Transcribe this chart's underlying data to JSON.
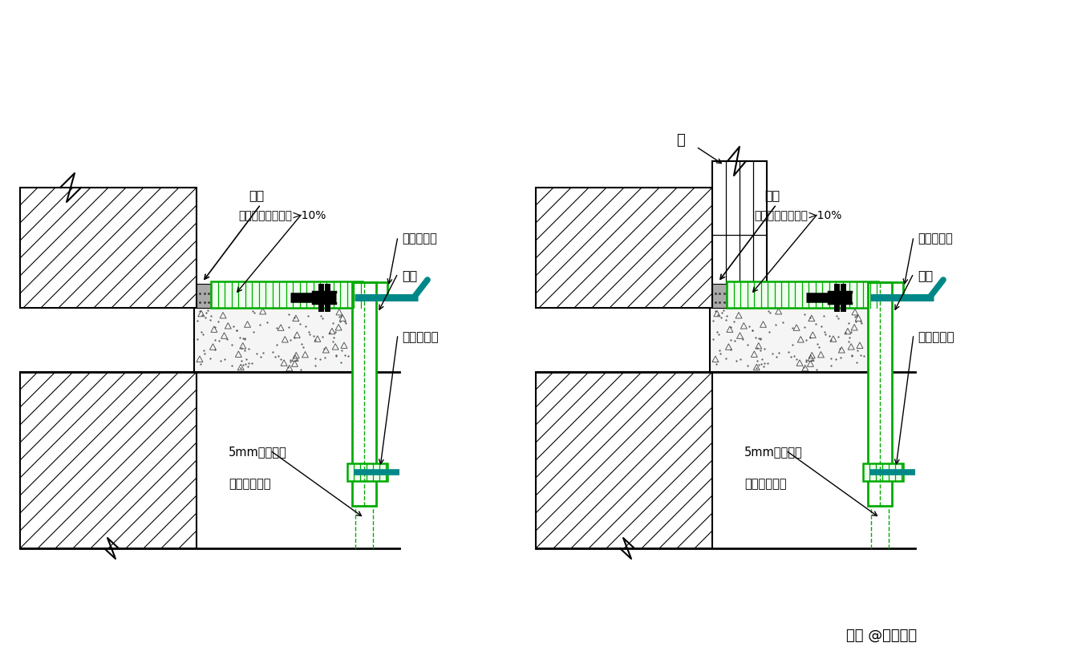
{
  "bg_color": "#ffffff",
  "black": "#000000",
  "green": "#00aa00",
  "teal": "#008888",
  "label_jiajiao": "夼胶",
  "label_mortar": "水泥沙浆粉刷坡度>10%",
  "label_glue": "云石胶夼缝",
  "label_stone": "石材",
  "label_flat": "扁钉或铝片",
  "label_groove": "5mm凹槽胶缝",
  "label_drip": "保证滴水功能",
  "label_window": "窗",
  "watermark": "头条 @工程蒓主",
  "fig_width": 13.44,
  "fig_height": 8.28,
  "dpi": 100
}
